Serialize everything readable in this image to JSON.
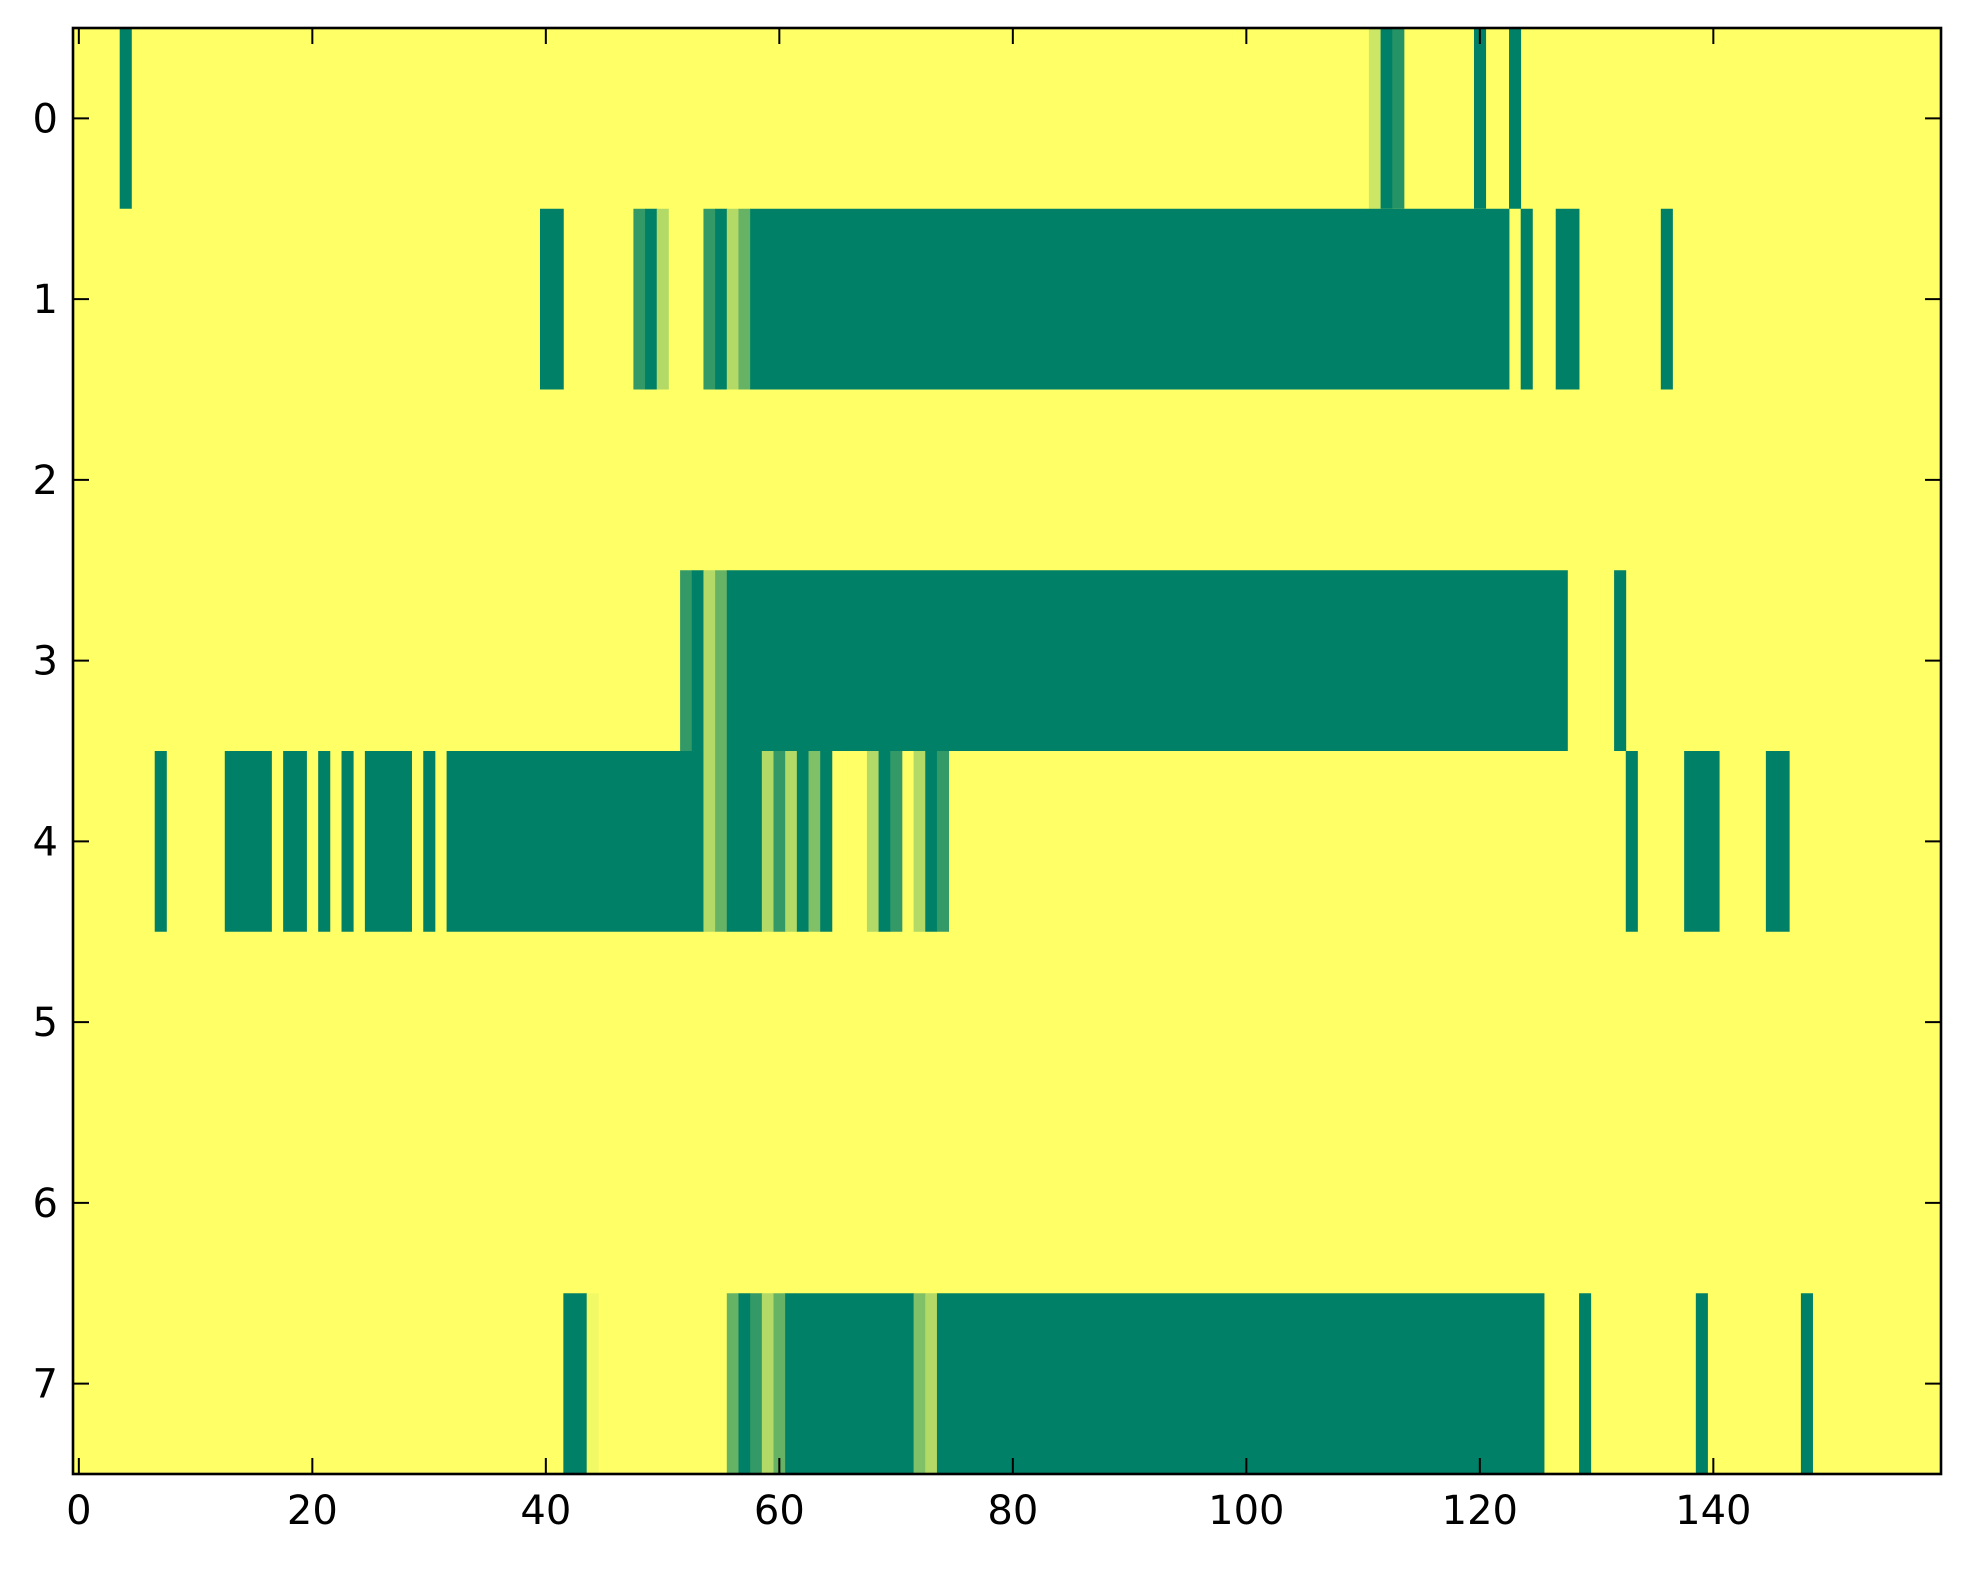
{
  "chart_data": {
    "type": "heatmap",
    "colormap": "summer_r",
    "colors": {
      "empty": "#ffff66",
      "full": "#008066",
      "light": "#c6e26a",
      "mid": "#5aac66",
      "dark": "#2e9766"
    },
    "x_range": [
      -0.5,
      159.5
    ],
    "y_range": [
      -0.5,
      7.5
    ],
    "x_ticks": [
      0,
      20,
      40,
      60,
      80,
      100,
      120,
      140
    ],
    "y_ticks": [
      0,
      1,
      2,
      3,
      4,
      5,
      6,
      7
    ],
    "rows": [
      {
        "row": 0,
        "segments": [
          [
            4,
            4,
            1.0
          ],
          [
            111,
            111,
            0.2
          ],
          [
            112,
            112,
            1.0
          ],
          [
            113,
            113,
            0.85
          ],
          [
            120,
            120,
            1.0
          ],
          [
            123,
            123,
            1.0
          ]
        ]
      },
      {
        "row": 1,
        "segments": [
          [
            40,
            41,
            1.0
          ],
          [
            48,
            48,
            0.8
          ],
          [
            49,
            49,
            1.0
          ],
          [
            50,
            50,
            0.3
          ],
          [
            54,
            54,
            0.8
          ],
          [
            55,
            55,
            1.0
          ],
          [
            56,
            56,
            0.3
          ],
          [
            57,
            57,
            0.6
          ],
          [
            58,
            122,
            1.0
          ],
          [
            124,
            124,
            1.0
          ],
          [
            127,
            128,
            1.0
          ],
          [
            136,
            136,
            1.0
          ]
        ]
      },
      {
        "row": 2,
        "segments": []
      },
      {
        "row": 3,
        "segments": [
          [
            52,
            52,
            0.8
          ],
          [
            53,
            53,
            1.0
          ],
          [
            54,
            54,
            0.3
          ],
          [
            55,
            55,
            0.6
          ],
          [
            56,
            127,
            1.0
          ],
          [
            132,
            132,
            1.0
          ]
        ]
      },
      {
        "row": 4,
        "segments": [
          [
            7,
            7,
            1.0
          ],
          [
            13,
            16,
            1.0
          ],
          [
            18,
            19,
            1.0
          ],
          [
            21,
            21,
            1.0
          ],
          [
            23,
            23,
            1.0
          ],
          [
            25,
            28,
            1.0
          ],
          [
            30,
            30,
            1.0
          ],
          [
            32,
            53,
            1.0
          ],
          [
            54,
            54,
            0.3
          ],
          [
            55,
            55,
            0.6
          ],
          [
            56,
            58,
            1.0
          ],
          [
            59,
            59,
            0.3
          ],
          [
            60,
            60,
            0.8
          ],
          [
            61,
            61,
            0.3
          ],
          [
            62,
            62,
            1.0
          ],
          [
            63,
            63,
            0.5
          ],
          [
            64,
            64,
            1.0
          ],
          [
            68,
            68,
            0.3
          ],
          [
            69,
            69,
            1.0
          ],
          [
            70,
            70,
            0.8
          ],
          [
            72,
            72,
            0.3
          ],
          [
            73,
            73,
            1.0
          ],
          [
            74,
            74,
            0.8
          ],
          [
            133,
            133,
            1.0
          ],
          [
            138,
            140,
            1.0
          ],
          [
            145,
            146,
            1.0
          ]
        ]
      },
      {
        "row": 5,
        "segments": []
      },
      {
        "row": 6,
        "segments": []
      },
      {
        "row": 7,
        "segments": [
          [
            42,
            43,
            1.0
          ],
          [
            44,
            44,
            0.05
          ],
          [
            56,
            56,
            0.6
          ],
          [
            57,
            57,
            1.0
          ],
          [
            58,
            58,
            0.8
          ],
          [
            59,
            59,
            0.3
          ],
          [
            60,
            60,
            0.6
          ],
          [
            61,
            71,
            1.0
          ],
          [
            72,
            72,
            0.5
          ],
          [
            73,
            73,
            0.3
          ],
          [
            74,
            125,
            1.0
          ],
          [
            129,
            129,
            1.0
          ],
          [
            139,
            139,
            1.0
          ],
          [
            148,
            148,
            1.0
          ]
        ]
      }
    ]
  }
}
